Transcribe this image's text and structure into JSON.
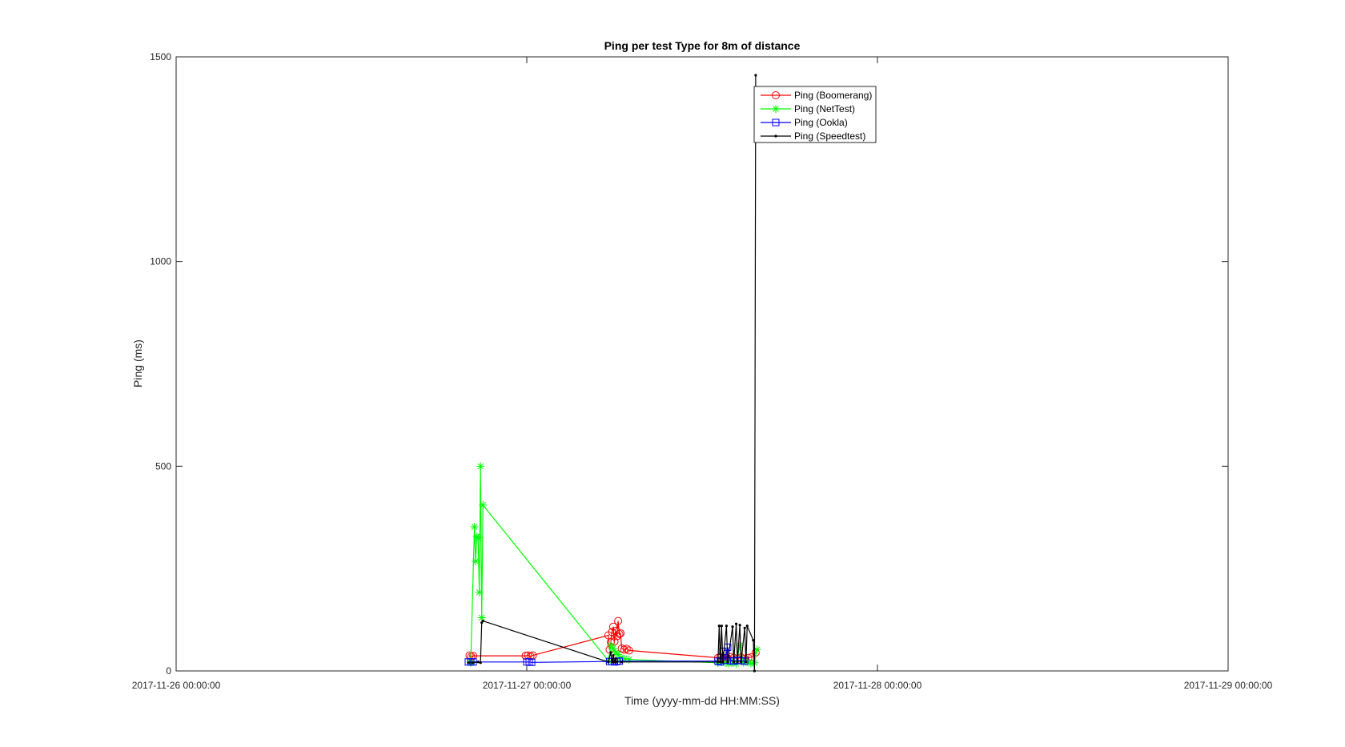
{
  "chart_data": {
    "type": "line",
    "title": "Ping per test Type for 8m of distance",
    "xlabel": "Time (yyyy-mm-dd HH:MM:SS)",
    "ylabel": "Ping (ms)",
    "xlim": [
      "2017-11-26 00:00:00",
      "2017-11-29 00:00:00"
    ],
    "ylim": [
      0,
      1500
    ],
    "x_ticks": [
      "2017-11-26 00:00:00",
      "2017-11-27 00:00:00",
      "2017-11-28 00:00:00",
      "2017-11-29 00:00:00"
    ],
    "y_ticks": [
      0,
      500,
      1000,
      1500
    ],
    "grid": false,
    "legend_position": "top-center",
    "series": [
      {
        "name": "Ping (Boomerang)",
        "color": "#ff0000",
        "marker": "circle",
        "points": [
          [
            "2017-11-26 20:05:00",
            38
          ],
          [
            "2017-11-26 20:12:00",
            35
          ],
          [
            "2017-11-26 20:20:00",
            37
          ],
          [
            "2017-11-26 23:55:00",
            37
          ],
          [
            "2017-11-27 00:05:00",
            38
          ],
          [
            "2017-11-27 00:15:00",
            36
          ],
          [
            "2017-11-27 00:25:00",
            38
          ],
          [
            "2017-11-27 05:35:00",
            87
          ],
          [
            "2017-11-27 05:40:00",
            52
          ],
          [
            "2017-11-27 05:45:00",
            70
          ],
          [
            "2017-11-27 05:50:00",
            95
          ],
          [
            "2017-11-27 05:55:00",
            108
          ],
          [
            "2017-11-27 06:00:00",
            72
          ],
          [
            "2017-11-27 06:05:00",
            98
          ],
          [
            "2017-11-27 06:10:00",
            85
          ],
          [
            "2017-11-27 06:15:00",
            122
          ],
          [
            "2017-11-27 06:20:00",
            90
          ],
          [
            "2017-11-27 06:25:00",
            92
          ],
          [
            "2017-11-27 06:30:00",
            55
          ],
          [
            "2017-11-27 06:40:00",
            52
          ],
          [
            "2017-11-27 06:50:00",
            54
          ],
          [
            "2017-11-27 07:00:00",
            50
          ],
          [
            "2017-11-27 13:05:00",
            32
          ],
          [
            "2017-11-27 13:15:00",
            34
          ],
          [
            "2017-11-27 13:25:00",
            30
          ],
          [
            "2017-11-27 13:35:00",
            32
          ],
          [
            "2017-11-27 13:45:00",
            31
          ],
          [
            "2017-11-27 13:55:00",
            34
          ],
          [
            "2017-11-27 14:10:00",
            32
          ],
          [
            "2017-11-27 14:25:00",
            30
          ],
          [
            "2017-11-27 14:40:00",
            33
          ],
          [
            "2017-11-27 14:55:00",
            30
          ],
          [
            "2017-11-27 15:10:00",
            32
          ],
          [
            "2017-11-27 15:25:00",
            34
          ],
          [
            "2017-11-27 15:40:00",
            45
          ]
        ]
      },
      {
        "name": "Ping (NetTest)",
        "color": "#00ff00",
        "marker": "star",
        "points": [
          [
            "2017-11-26 20:10:00",
            20
          ],
          [
            "2017-11-26 20:25:00",
            352
          ],
          [
            "2017-11-26 20:30:00",
            268
          ],
          [
            "2017-11-26 20:35:00",
            328
          ],
          [
            "2017-11-26 20:40:00",
            325
          ],
          [
            "2017-11-26 20:45:00",
            192
          ],
          [
            "2017-11-26 20:50:00",
            500
          ],
          [
            "2017-11-26 20:55:00",
            130
          ],
          [
            "2017-11-26 21:00:00",
            405
          ],
          [
            "2017-11-27 05:35:00",
            25
          ],
          [
            "2017-11-27 05:45:00",
            62
          ],
          [
            "2017-11-27 05:55:00",
            55
          ],
          [
            "2017-11-27 06:05:00",
            45
          ],
          [
            "2017-11-27 06:15:00",
            40
          ],
          [
            "2017-11-27 06:25:00",
            32
          ],
          [
            "2017-11-27 06:40:00",
            30
          ],
          [
            "2017-11-27 07:00:00",
            28
          ],
          [
            "2017-11-27 13:05:00",
            20
          ],
          [
            "2017-11-27 13:20:00",
            22
          ],
          [
            "2017-11-27 13:35:00",
            20
          ],
          [
            "2017-11-27 13:50:00",
            18
          ],
          [
            "2017-11-27 14:05:00",
            20
          ],
          [
            "2017-11-27 14:20:00",
            18
          ],
          [
            "2017-11-27 14:35:00",
            62
          ],
          [
            "2017-11-27 14:50:00",
            20
          ],
          [
            "2017-11-27 15:05:00",
            22
          ],
          [
            "2017-11-27 15:20:00",
            18
          ],
          [
            "2017-11-27 15:35:00",
            20
          ],
          [
            "2017-11-27 15:45:00",
            52
          ]
        ]
      },
      {
        "name": "Ping (Ookla)",
        "color": "#0000ff",
        "marker": "square",
        "points": [
          [
            "2017-11-26 20:00:00",
            22
          ],
          [
            "2017-11-26 20:10:00",
            22
          ],
          [
            "2017-11-26 20:20:00",
            22
          ],
          [
            "2017-11-27 00:00:00",
            22
          ],
          [
            "2017-11-27 00:10:00",
            22
          ],
          [
            "2017-11-27 00:20:00",
            21
          ],
          [
            "2017-11-27 05:40:00",
            23
          ],
          [
            "2017-11-27 05:50:00",
            23
          ],
          [
            "2017-11-27 06:00:00",
            22
          ],
          [
            "2017-11-27 06:10:00",
            23
          ],
          [
            "2017-11-27 06:20:00",
            24
          ],
          [
            "2017-11-27 13:05:00",
            24
          ],
          [
            "2017-11-27 13:15:00",
            22
          ],
          [
            "2017-11-27 13:25:00",
            48
          ],
          [
            "2017-11-27 13:35:00",
            26
          ],
          [
            "2017-11-27 13:45:00",
            58
          ],
          [
            "2017-11-27 13:55:00",
            25
          ],
          [
            "2017-11-27 14:10:00",
            24
          ],
          [
            "2017-11-27 14:25:00",
            26
          ],
          [
            "2017-11-27 14:40:00",
            25
          ],
          [
            "2017-11-27 14:55:00",
            24
          ]
        ]
      },
      {
        "name": "Ping (Speedtest)",
        "color": "#000000",
        "marker": "point",
        "points": [
          [
            "2017-11-26 20:00:00",
            20
          ],
          [
            "2017-11-26 20:20:00",
            20
          ],
          [
            "2017-11-26 20:40:00",
            22
          ],
          [
            "2017-11-26 20:50:00",
            20
          ],
          [
            "2017-11-26 20:55:00",
            118
          ],
          [
            "2017-11-26 21:00:00",
            122
          ],
          [
            "2017-11-27 05:35:00",
            22
          ],
          [
            "2017-11-27 05:45:00",
            45
          ],
          [
            "2017-11-27 05:50:00",
            22
          ],
          [
            "2017-11-27 05:55:00",
            38
          ],
          [
            "2017-11-27 06:00:00",
            22
          ],
          [
            "2017-11-27 06:05:00",
            30
          ],
          [
            "2017-11-27 06:10:00",
            22
          ],
          [
            "2017-11-27 06:30:00",
            22
          ],
          [
            "2017-11-27 13:05:00",
            22
          ],
          [
            "2017-11-27 13:10:00",
            110
          ],
          [
            "2017-11-27 13:15:00",
            22
          ],
          [
            "2017-11-27 13:20:00",
            110
          ],
          [
            "2017-11-27 13:25:00",
            22
          ],
          [
            "2017-11-27 13:40:00",
            110
          ],
          [
            "2017-11-27 13:45:00",
            22
          ],
          [
            "2017-11-27 14:05:00",
            108
          ],
          [
            "2017-11-27 14:10:00",
            22
          ],
          [
            "2017-11-27 14:20:00",
            115
          ],
          [
            "2017-11-27 14:25:00",
            22
          ],
          [
            "2017-11-27 14:35:00",
            112
          ],
          [
            "2017-11-27 14:40:00",
            22
          ],
          [
            "2017-11-27 14:55:00",
            105
          ],
          [
            "2017-11-27 15:00:00",
            22
          ],
          [
            "2017-11-27 15:05:00",
            110
          ],
          [
            "2017-11-27 15:30:00",
            75
          ],
          [
            "2017-11-27 15:35:00",
            0
          ],
          [
            "2017-11-27 15:40:00",
            1455
          ]
        ]
      }
    ]
  }
}
